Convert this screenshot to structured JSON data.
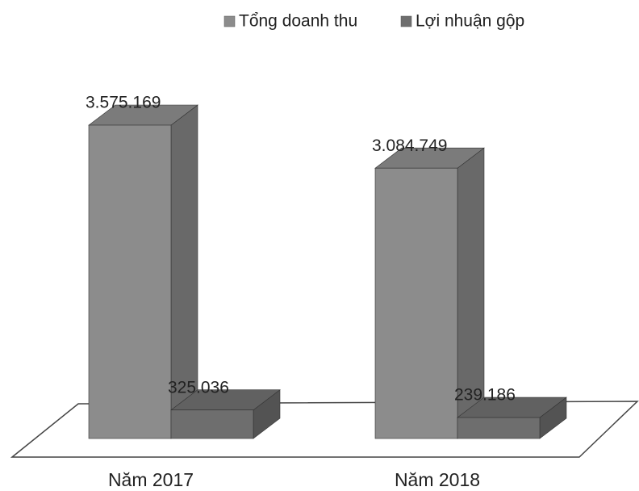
{
  "chart_data": {
    "type": "bar3d",
    "categories": [
      "Năm 2017",
      "Năm 2018"
    ],
    "series": [
      {
        "name": "Tổng doanh thu",
        "color": "#8c8c8c",
        "values": [
          3575169,
          3084749
        ],
        "value_labels": [
          "3.575.169",
          "3.084.749"
        ]
      },
      {
        "name": "Lợi nhuận gộp",
        "color": "#6e6e6e",
        "values": [
          325036,
          239186
        ],
        "value_labels": [
          "325.036",
          "239.186"
        ]
      }
    ],
    "legend": "top"
  }
}
